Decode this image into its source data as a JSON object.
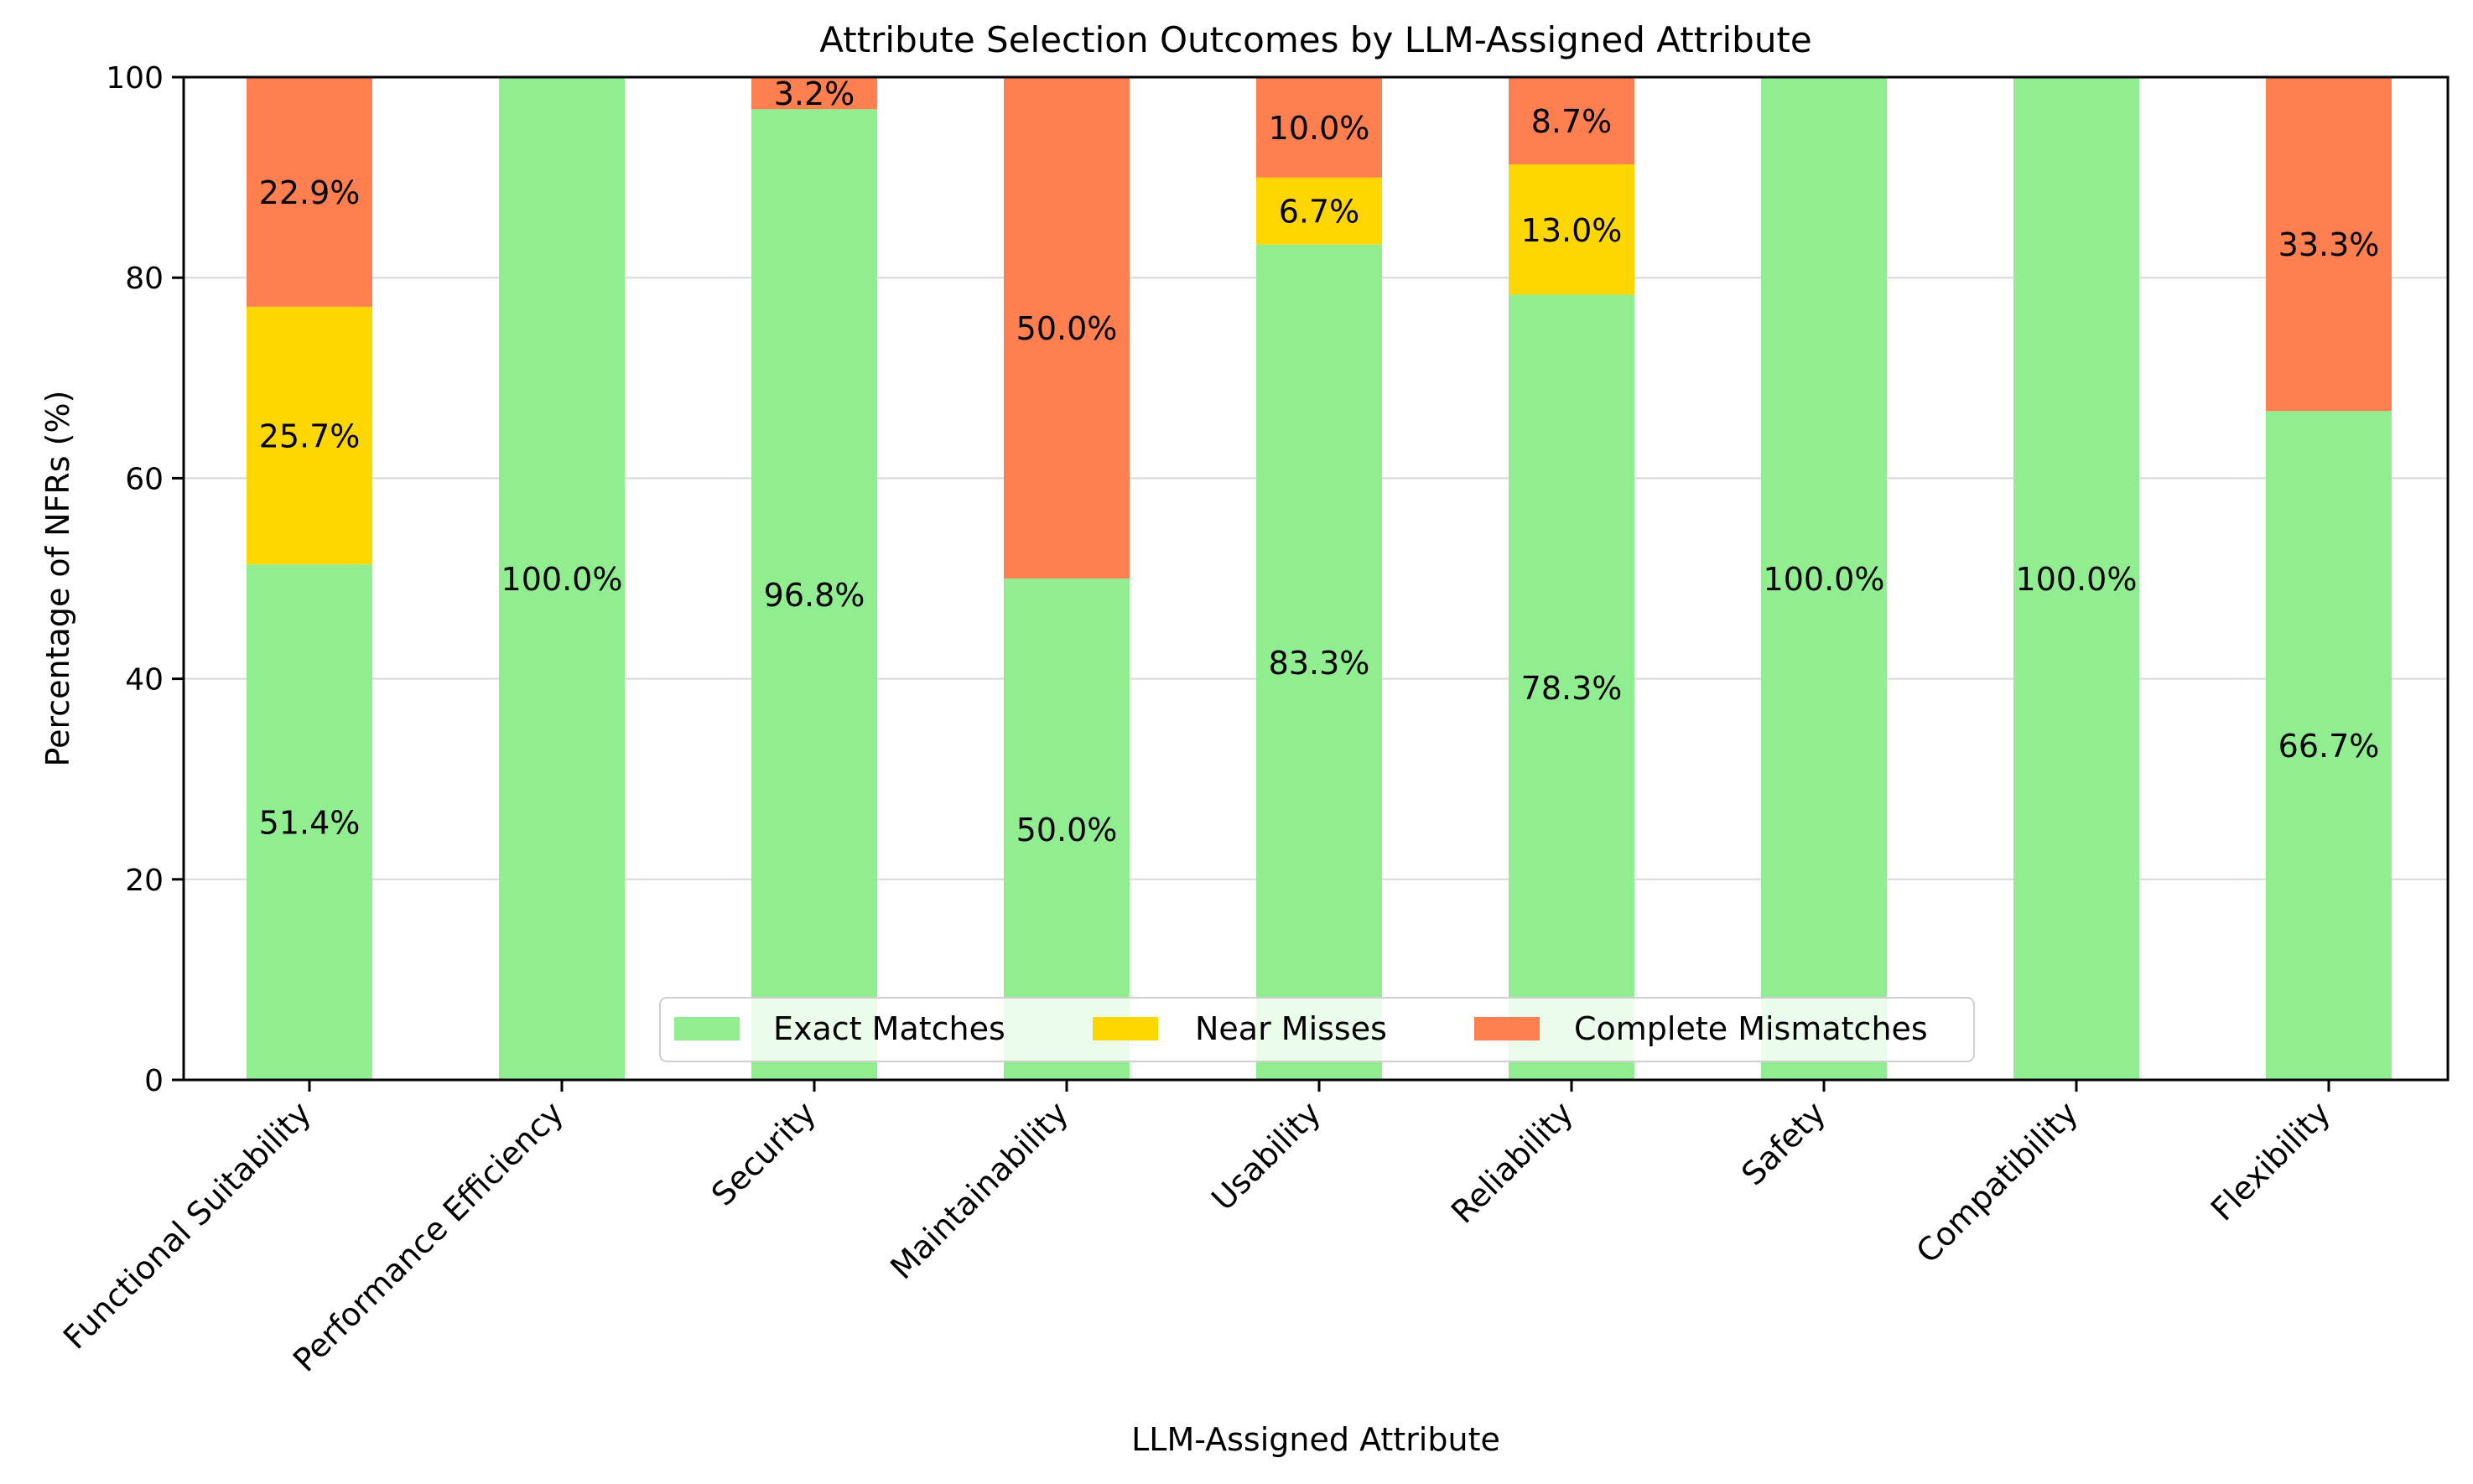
{
  "chart_data": {
    "type": "bar",
    "stacked": true,
    "title": "Attribute Selection Outcomes by LLM-Assigned Attribute",
    "xlabel": "LLM-Assigned Attribute",
    "ylabel": "Percentage of NFRs (%)",
    "ylim": [
      0,
      100
    ],
    "yticks": [
      0,
      20,
      40,
      60,
      80,
      100
    ],
    "grid": "horizontal",
    "legend_position": "bottom-center",
    "categories": [
      "Functional Suitability",
      "Performance Efficiency",
      "Security",
      "Maintainability",
      "Usability",
      "Reliability",
      "Safety",
      "Compatibility",
      "Flexibility"
    ],
    "series": [
      {
        "name": "Exact Matches",
        "color": "#90ee90",
        "values": [
          51.4,
          100.0,
          96.8,
          50.0,
          83.3,
          78.3,
          100.0,
          100.0,
          66.7
        ],
        "labels": [
          "51.4%",
          "100.0%",
          "96.8%",
          "50.0%",
          "83.3%",
          "78.3%",
          "100.0%",
          "100.0%",
          "66.7%"
        ]
      },
      {
        "name": "Near Misses",
        "color": "#ffd700",
        "values": [
          25.7,
          0,
          0,
          0,
          6.7,
          13.0,
          0,
          0,
          0
        ],
        "labels": [
          "25.7%",
          "",
          "",
          "",
          "6.7%",
          "13.0%",
          "",
          "",
          ""
        ]
      },
      {
        "name": "Complete Mismatches",
        "color": "#ff7f50",
        "values": [
          22.9,
          0,
          3.2,
          50.0,
          10.0,
          8.7,
          0,
          0,
          33.3
        ],
        "labels": [
          "22.9%",
          "",
          "3.2%",
          "50.0%",
          "10.0%",
          "8.7%",
          "",
          "",
          "33.3%"
        ]
      }
    ]
  }
}
